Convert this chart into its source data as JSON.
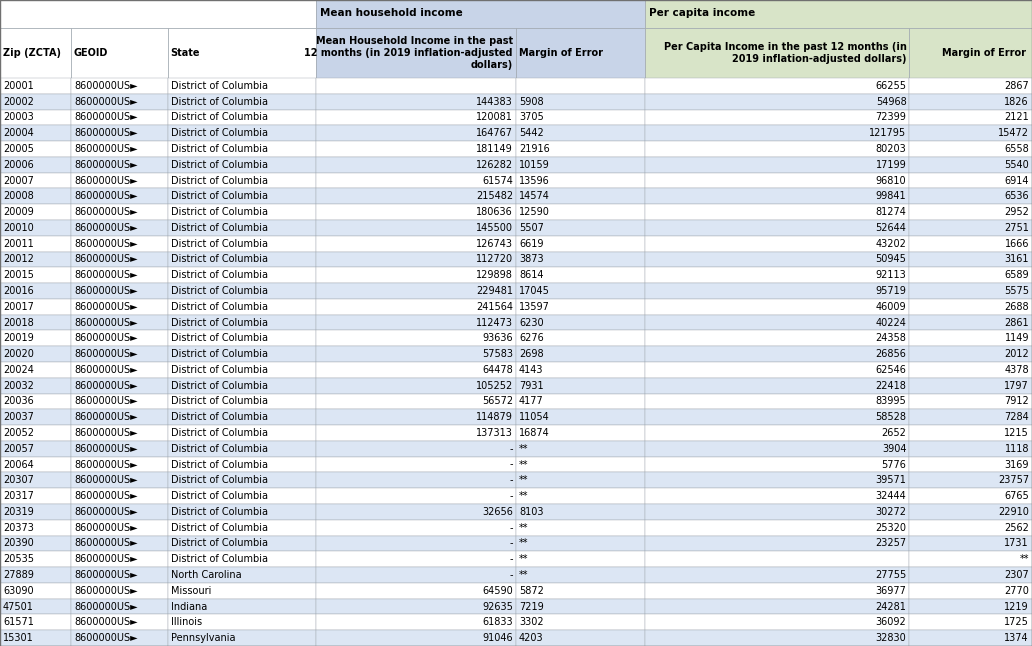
{
  "columns_display": [
    "Zip (ZCTA)",
    "GEOID",
    "State",
    "Mean Household Income in the past\n12 months (in 2019 inflation-adjusted\ndollars)",
    "Margin of Error",
    "Per Capita Income in the past 12 months (in\n2019 inflation-adjusted dollars)",
    "Margin of Error "
  ],
  "group_header1": "Mean household income",
  "group_header2": "Per capita income",
  "rows": [
    [
      "20001",
      "8600000US►",
      "District of Columbia",
      "",
      "",
      "66255",
      "2867"
    ],
    [
      "20002",
      "8600000US►",
      "District of Columbia",
      "144383",
      "5908",
      "54968",
      "1826"
    ],
    [
      "20003",
      "8600000US►",
      "District of Columbia",
      "120081",
      "3705",
      "72399",
      "2121"
    ],
    [
      "20004",
      "8600000US►",
      "District of Columbia",
      "164767",
      "5442",
      "121795",
      "15472"
    ],
    [
      "20005",
      "8600000US►",
      "District of Columbia",
      "181149",
      "21916",
      "80203",
      "6558"
    ],
    [
      "20006",
      "8600000US►",
      "District of Columbia",
      "126282",
      "10159",
      "17199",
      "5540"
    ],
    [
      "20007",
      "8600000US►",
      "District of Columbia",
      "61574",
      "13596",
      "96810",
      "6914"
    ],
    [
      "20008",
      "8600000US►",
      "District of Columbia",
      "215482",
      "14574",
      "99841",
      "6536"
    ],
    [
      "20009",
      "8600000US►",
      "District of Columbia",
      "180636",
      "12590",
      "81274",
      "2952"
    ],
    [
      "20010",
      "8600000US►",
      "District of Columbia",
      "145500",
      "5507",
      "52644",
      "2751"
    ],
    [
      "20011",
      "8600000US►",
      "District of Columbia",
      "126743",
      "6619",
      "43202",
      "1666"
    ],
    [
      "20012",
      "8600000US►",
      "District of Columbia",
      "112720",
      "3873",
      "50945",
      "3161"
    ],
    [
      "20015",
      "8600000US►",
      "District of Columbia",
      "129898",
      "8614",
      "92113",
      "6589"
    ],
    [
      "20016",
      "8600000US►",
      "District of Columbia",
      "229481",
      "17045",
      "95719",
      "5575"
    ],
    [
      "20017",
      "8600000US►",
      "District of Columbia",
      "241564",
      "13597",
      "46009",
      "2688"
    ],
    [
      "20018",
      "8600000US►",
      "District of Columbia",
      "112473",
      "6230",
      "40224",
      "2861"
    ],
    [
      "20019",
      "8600000US►",
      "District of Columbia",
      "93636",
      "6276",
      "24358",
      "1149"
    ],
    [
      "20020",
      "8600000US►",
      "District of Columbia",
      "57583",
      "2698",
      "26856",
      "2012"
    ],
    [
      "20024",
      "8600000US►",
      "District of Columbia",
      "64478",
      "4143",
      "62546",
      "4378"
    ],
    [
      "20032",
      "8600000US►",
      "District of Columbia",
      "105252",
      "7931",
      "22418",
      "1797"
    ],
    [
      "20036",
      "8600000US►",
      "District of Columbia",
      "56572",
      "4177",
      "83995",
      "7912"
    ],
    [
      "20037",
      "8600000US►",
      "District of Columbia",
      "114879",
      "11054",
      "58528",
      "7284"
    ],
    [
      "20052",
      "8600000US►",
      "District of Columbia",
      "137313",
      "16874",
      "2652",
      "1215"
    ],
    [
      "20057",
      "8600000US►",
      "District of Columbia",
      "-",
      "**",
      "3904",
      "1118"
    ],
    [
      "20064",
      "8600000US►",
      "District of Columbia",
      "-",
      "**",
      "5776",
      "3169"
    ],
    [
      "20307",
      "8600000US►",
      "District of Columbia",
      "-",
      "**",
      "39571",
      "23757"
    ],
    [
      "20317",
      "8600000US►",
      "District of Columbia",
      "-",
      "**",
      "32444",
      "6765"
    ],
    [
      "20319",
      "8600000US►",
      "District of Columbia",
      "32656",
      "8103",
      "30272",
      "22910"
    ],
    [
      "20373",
      "8600000US►",
      "District of Columbia",
      "-",
      "**",
      "25320",
      "2562"
    ],
    [
      "20390",
      "8600000US►",
      "District of Columbia",
      "-",
      "**",
      "23257",
      "1731"
    ],
    [
      "20535",
      "8600000US►",
      "District of Columbia",
      "-",
      "**",
      "",
      "**"
    ],
    [
      "27889",
      "8600000US►",
      "North Carolina",
      "-",
      "**",
      "27755",
      "2307"
    ],
    [
      "63090",
      "8600000US►",
      "Missouri",
      "64590",
      "5872",
      "36977",
      "2770"
    ],
    [
      "47501",
      "8600000US►",
      "Indiana",
      "92635",
      "7219",
      "24281",
      "1219"
    ],
    [
      "61571",
      "8600000US►",
      "Illinois",
      "61833",
      "3302",
      "36092",
      "1725"
    ],
    [
      "15301",
      "8600000US►",
      "Pennsylvania",
      "91046",
      "4203",
      "32830",
      "1374"
    ]
  ],
  "hdr_blue": "#c8d4e8",
  "hdr_green": "#d8e4c8",
  "row_white": "#ffffff",
  "row_blue_light": "#dce6f4",
  "grid_color": "#a0a8b0",
  "font_size": 7.0,
  "col_widths_pts": [
    55,
    75,
    115,
    155,
    100,
    205,
    95
  ]
}
